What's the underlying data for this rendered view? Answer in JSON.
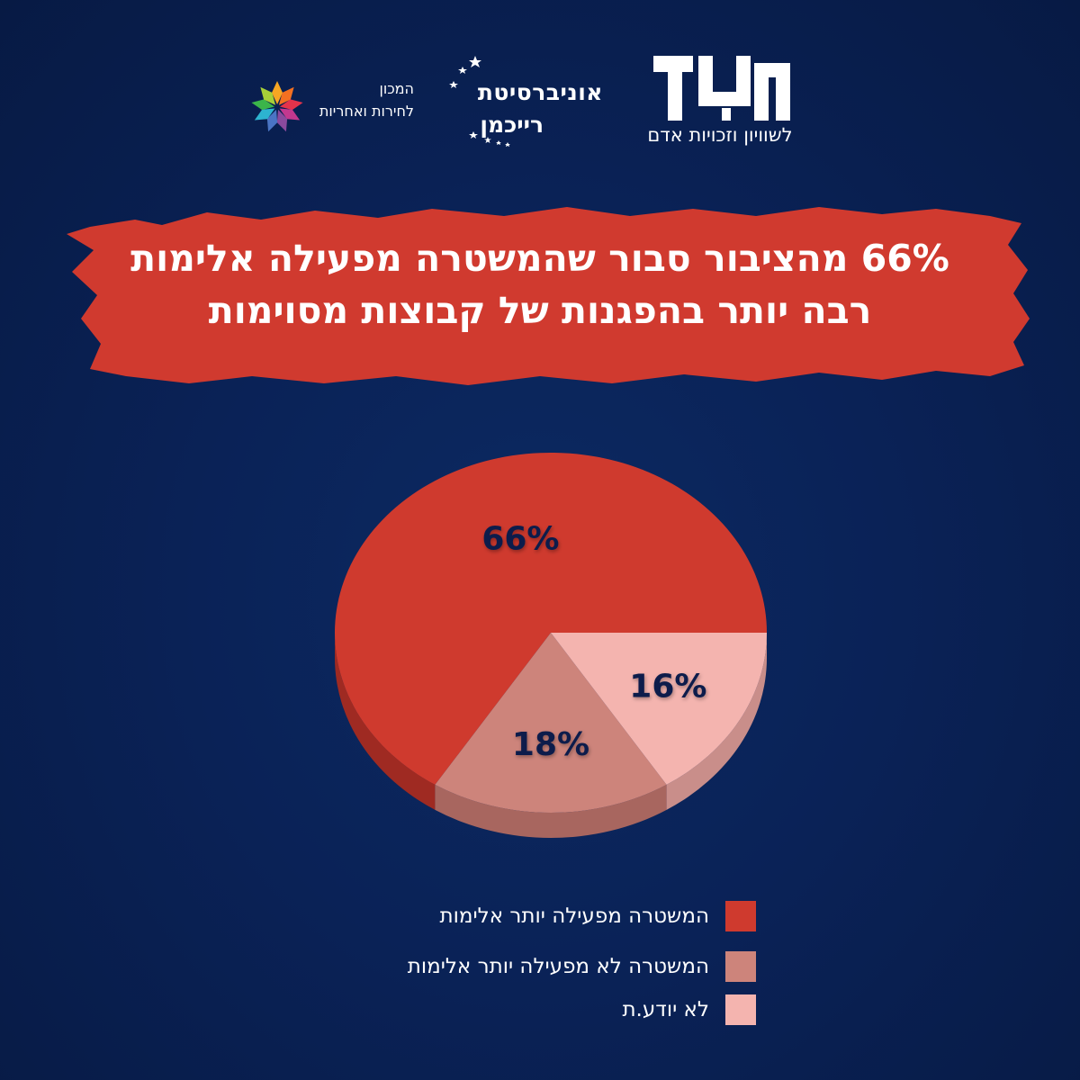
{
  "logos": {
    "zulat_name": "זולת",
    "zulat_subtitle": "לשוויון וזכויות אדם",
    "university_line1": "אוניברסיטת",
    "university_line2": "רייכמן",
    "institute_line1": "המכון",
    "institute_line2": "לחירות ואחריות"
  },
  "headline": {
    "line1": "66% מהציבור סבור שהמשטרה מפעילה אלימות",
    "line2": "רבה יותר בהפגנות של קבוצות מסוימות"
  },
  "colors": {
    "background": "#0a2257",
    "banner": "#d03a2f",
    "slice_violent": "#cf3a2e",
    "slice_not_violent": "#cd847b",
    "slice_dont_know": "#f4b4af",
    "label_text": "#0d1f4c"
  },
  "chart_data": {
    "type": "pie",
    "title": "66% מהציבור סבור שהמשטרה מפעילה אלימות רבה יותר בהפגנות של קבוצות מסוימות",
    "categories": [
      "המשטרה מפעילה יותר אלימות",
      "המשטרה לא מפעילה יותר אלימות",
      "לא יודע.ת"
    ],
    "values": [
      66,
      18,
      16
    ],
    "labels": [
      "66%",
      "18%",
      "16%"
    ],
    "legend_position": "bottom"
  }
}
